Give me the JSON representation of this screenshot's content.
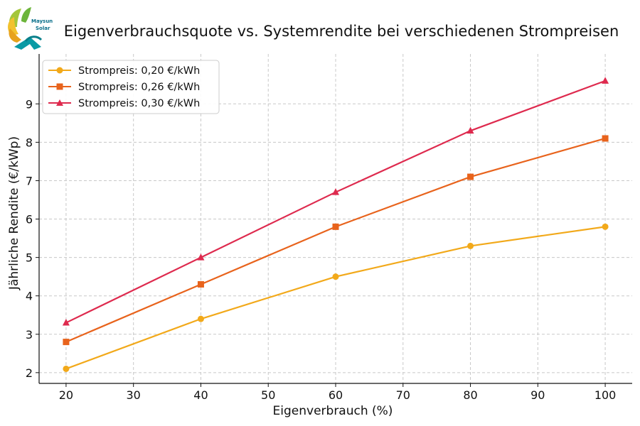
{
  "logo": {
    "name": "Maysun Solar",
    "line1": "Maysun",
    "line2": "Solar"
  },
  "chart_data": {
    "type": "line",
    "title": "Eigenverbrauchsquote vs. Systemrendite bei verschiedenen Strompreisen",
    "xlabel": "Eigenverbrauch (%)",
    "ylabel": "Jährliche Rendite (€/kWp)",
    "x": [
      20,
      40,
      60,
      80,
      100
    ],
    "xlim": [
      16,
      104
    ],
    "ylim": [
      1.72,
      10.3
    ],
    "xticks": [
      20,
      30,
      40,
      50,
      60,
      70,
      80,
      90,
      100
    ],
    "yticks": [
      2,
      3,
      4,
      5,
      6,
      7,
      8,
      9
    ],
    "grid": true,
    "legend_position": "top-left",
    "series": [
      {
        "name": "Strompreis: 0,20 €/kWh",
        "color": "#f2a91a",
        "marker": "circle",
        "values": [
          2.1,
          3.4,
          4.5,
          5.3,
          5.8
        ]
      },
      {
        "name": "Strompreis: 0,26 €/kWh",
        "color": "#e8631c",
        "marker": "square",
        "values": [
          2.8,
          4.3,
          5.8,
          7.1,
          8.1
        ]
      },
      {
        "name": "Strompreis: 0,30 €/kWh",
        "color": "#de2a4e",
        "marker": "triangle",
        "values": [
          3.3,
          5.0,
          6.7,
          8.3,
          9.6
        ]
      }
    ]
  }
}
